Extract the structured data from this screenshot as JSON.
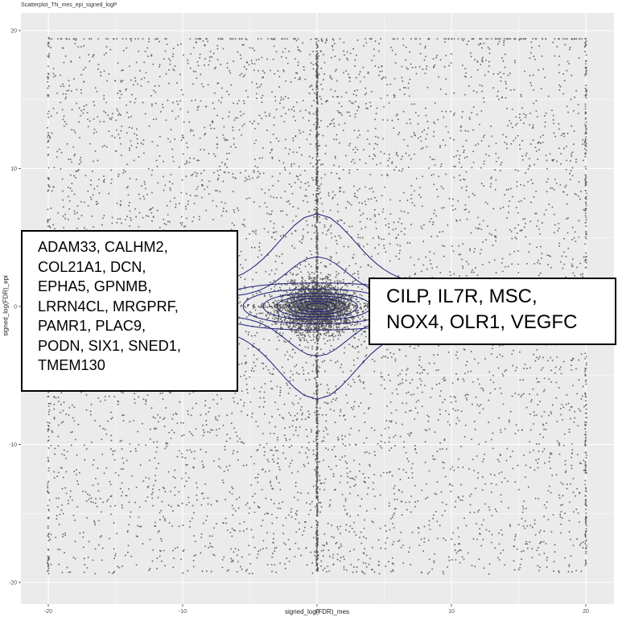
{
  "chart_data": {
    "type": "scatter",
    "title": "Scatterplot_TN_mes_epi_signed_logP",
    "xlabel": "signed_log(FDR)_mes",
    "ylabel": "signed_log(FDR)_epi",
    "xlim": [
      -21.5,
      22
    ],
    "ylim": [
      -21.5,
      21.5
    ],
    "x_ticks": [
      -20,
      -10,
      0,
      10,
      20
    ],
    "y_ticks": [
      -20,
      -10,
      0,
      10,
      20
    ],
    "grid": true,
    "point_color": "#555555",
    "contour_color": "#1f1f7a",
    "background": "#ebebeb",
    "legend": "none",
    "density_contours": "2D density contour lines centered at (0, 0)",
    "annotations": [
      "ADAM33, CALHM2, COL21A1, DCN, EPHA5, GPNMB, LRRN4CL, MRGPRF, PAMR1, PLAC9, PODN, SIX1, SNED1, TMEM130",
      "CILP, IL7R, MSC, NOX4, OLR1, VEGFC"
    ]
  },
  "labels": {
    "title": "Scatterplot_TN_mes_epi_signed_logP",
    "x_axis": "signed_log(FDR)_mes",
    "y_axis": "signed_log(FDR)_epi",
    "x_tick_labels": [
      "-20",
      "-10",
      "0",
      "10",
      "20"
    ],
    "y_tick_labels": [
      "20",
      "10",
      "0",
      "-10",
      "-20"
    ]
  },
  "gene_boxes": {
    "left_lines": [
      "ADAM33, CALHM2,",
      "COL21A1, DCN,",
      "EPHA5, GPNMB,",
      "LRRN4CL, MRGPRF,",
      "PAMR1, PLAC9,",
      "PODN, SIX1, SNED1,",
      "TMEM130"
    ],
    "right_lines": [
      "CILP, IL7R, MSC,",
      "NOX4, OLR1, VEGFC"
    ]
  }
}
